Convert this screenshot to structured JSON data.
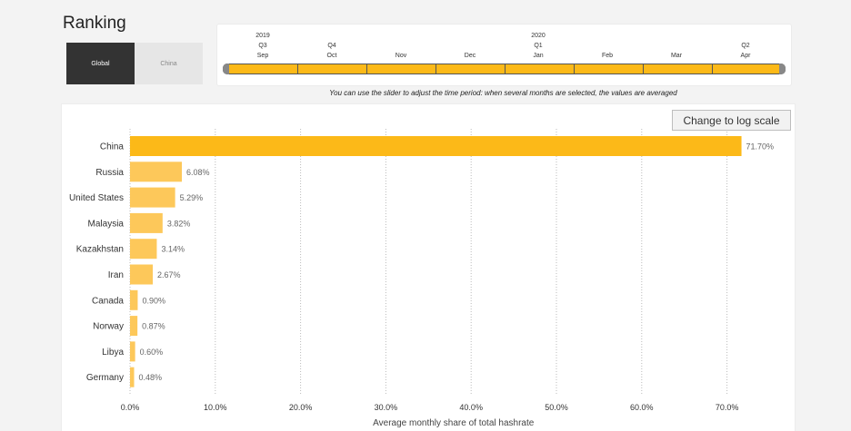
{
  "title": "Ranking",
  "toggle": {
    "global_label": "Global",
    "china_label": "China",
    "selected": "Global"
  },
  "timeline": {
    "years": [
      "2019",
      "2020"
    ],
    "quarters": [
      "Q3",
      "Q4",
      "Q1",
      "Q2"
    ],
    "months": [
      "Sep",
      "Oct",
      "Nov",
      "Dec",
      "Jan",
      "Feb",
      "Mar",
      "Apr"
    ],
    "note": "You can use the slider to adjust the time period: when several months are selected, the values are averaged"
  },
  "log_button_label": "Change to log scale",
  "chart_data": {
    "type": "bar",
    "orientation": "horizontal",
    "categories": [
      "China",
      "Russia",
      "United States",
      "Malaysia",
      "Kazakhstan",
      "Iran",
      "Canada",
      "Norway",
      "Libya",
      "Germany"
    ],
    "values": [
      71.7,
      6.08,
      5.29,
      3.82,
      3.14,
      2.67,
      0.9,
      0.87,
      0.6,
      0.48
    ],
    "value_labels": [
      "71.70%",
      "6.08%",
      "5.29%",
      "3.82%",
      "3.14%",
      "2.67%",
      "0.90%",
      "0.87%",
      "0.60%",
      "0.48%"
    ],
    "xlabel": "Average monthly share of total hashrate",
    "xticks": [
      0,
      10,
      20,
      30,
      40,
      50,
      60,
      70
    ],
    "xtick_labels": [
      "0.0%",
      "10.0%",
      "20.0%",
      "30.0%",
      "40.0%",
      "50.0%",
      "60.0%",
      "70.0%"
    ],
    "xlim": [
      0,
      75
    ],
    "grid": "vertical dotted",
    "colors": {
      "top_bar": "#fcb918",
      "other_bars": "#fdc85a"
    }
  }
}
